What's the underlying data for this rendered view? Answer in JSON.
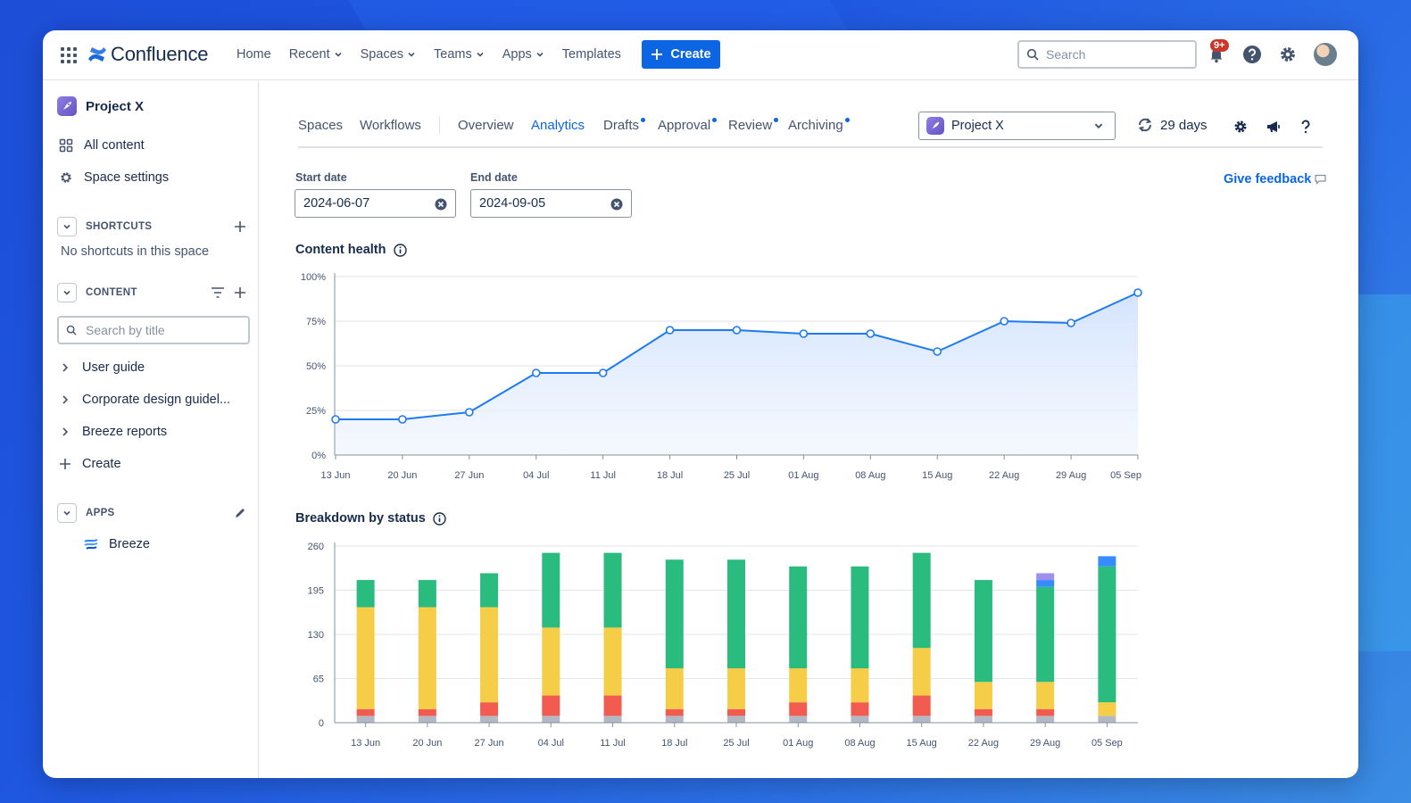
{
  "header": {
    "logo": "Confluence",
    "nav": [
      {
        "label": "Home",
        "dropdown": false
      },
      {
        "label": "Recent",
        "dropdown": true
      },
      {
        "label": "Spaces",
        "dropdown": true
      },
      {
        "label": "Teams",
        "dropdown": true
      },
      {
        "label": "Apps",
        "dropdown": true
      },
      {
        "label": "Templates",
        "dropdown": false
      }
    ],
    "create_label": "Create",
    "search_placeholder": "Search",
    "notifications_badge": "9+"
  },
  "sidebar": {
    "space_name": "Project X",
    "all_content": "All content",
    "space_settings": "Space settings",
    "shortcuts_heading": "SHORTCUTS",
    "no_shortcuts": "No shortcuts in this space",
    "content_heading": "CONTENT",
    "search_placeholder": "Search by title",
    "pages": [
      "User guide",
      "Corporate design guidel...",
      "Breeze reports"
    ],
    "create_label": "Create",
    "apps_heading": "APPS",
    "apps": [
      "Breeze"
    ]
  },
  "tabs": {
    "spaces": "Spaces",
    "workflows": "Workflows",
    "overview": "Overview",
    "analytics": "Analytics",
    "drafts": "Drafts",
    "approval": "Approval",
    "review": "Review",
    "archiving": "Archiving"
  },
  "toolbar": {
    "project_select": "Project X",
    "days": "29 days"
  },
  "filters": {
    "start_label": "Start date",
    "start_value": "2024-06-07",
    "end_label": "End date",
    "end_value": "2024-09-05",
    "feedback": "Give feedback"
  },
  "colors": {
    "accent": "#0c66e4",
    "line": "#1d7af3",
    "green": "#2abb7f",
    "yellow": "#f5cd47",
    "red": "#f15b50",
    "gray": "#b3b9c4",
    "blue": "#388bff",
    "purple": "#9f8fef"
  },
  "chart_data": [
    {
      "type": "area",
      "title": "Content health",
      "categories": [
        "13 Jun",
        "20 Jun",
        "27 Jun",
        "04 Jul",
        "11 Jul",
        "18 Jul",
        "25 Jul",
        "01 Aug",
        "08 Aug",
        "15 Aug",
        "22 Aug",
        "29 Aug",
        "05 Sep"
      ],
      "values": [
        20,
        20,
        24,
        46,
        46,
        70,
        70,
        68,
        68,
        58,
        75,
        74,
        91
      ],
      "ylim": [
        0,
        100
      ],
      "yticks": [
        "0%",
        "25%",
        "50%",
        "75%",
        "100%"
      ],
      "ytick_values": [
        0,
        25,
        50,
        75,
        100
      ]
    },
    {
      "type": "bar",
      "stacked": true,
      "title": "Breakdown by status",
      "categories": [
        "13 Jun",
        "20 Jun",
        "27 Jun",
        "04 Jul",
        "11 Jul",
        "18 Jul",
        "25 Jul",
        "01 Aug",
        "08 Aug",
        "15 Aug",
        "22 Aug",
        "29 Aug",
        "05 Sep"
      ],
      "series": [
        {
          "name": "gray",
          "color": "#b3b9c4",
          "values": [
            10,
            10,
            10,
            10,
            10,
            10,
            10,
            10,
            10,
            10,
            10,
            10,
            10
          ]
        },
        {
          "name": "red",
          "color": "#f15b50",
          "values": [
            10,
            10,
            20,
            30,
            30,
            10,
            10,
            20,
            20,
            30,
            10,
            10,
            0
          ]
        },
        {
          "name": "yellow",
          "color": "#f5cd47",
          "values": [
            150,
            150,
            140,
            100,
            100,
            60,
            60,
            50,
            50,
            70,
            40,
            40,
            20
          ]
        },
        {
          "name": "green",
          "color": "#2abb7f",
          "values": [
            40,
            40,
            50,
            110,
            110,
            160,
            160,
            150,
            150,
            140,
            150,
            140,
            200
          ]
        },
        {
          "name": "blue",
          "color": "#388bff",
          "values": [
            0,
            0,
            0,
            0,
            0,
            0,
            0,
            0,
            0,
            0,
            0,
            10,
            15
          ]
        },
        {
          "name": "purple",
          "color": "#9f8fef",
          "values": [
            0,
            0,
            0,
            0,
            0,
            0,
            0,
            0,
            0,
            0,
            0,
            10,
            0
          ]
        }
      ],
      "ylim": [
        0,
        260
      ],
      "yticks": [
        "0",
        "65",
        "130",
        "195",
        "260"
      ],
      "ytick_values": [
        0,
        65,
        130,
        195,
        260
      ]
    }
  ]
}
